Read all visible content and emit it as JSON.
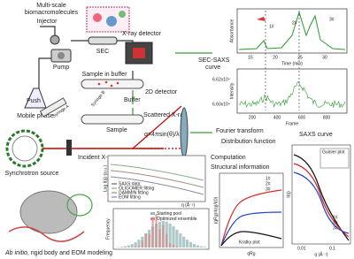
{
  "labels": {
    "molecules": [
      "Multi-scale",
      "biomacromolecules"
    ],
    "injector": "Injector",
    "xray_detector": "X-ray detector",
    "pump": "Pump",
    "sec": "SEC",
    "mobile_phase": "Mobile phase",
    "sample_in_buffer": "Sample in buffer",
    "buffer": "Buffer",
    "push": "Push",
    "syringe_a": "Syringe A",
    "syringe_b": "Syringe B",
    "sample": "Sample",
    "detector_2d": "2D detector",
    "sec_saxs_curve": [
      "SEC-SAXS",
      "curve"
    ],
    "synchrotron": "Synchrotron source",
    "incident": "Incident X-ray",
    "scattered": "Scattered X-ray",
    "q_formula": "q=4πsin(θ)/λ",
    "fourier": "Fourier transform",
    "distribution": "Distribution function",
    "saxs_curve": "SAXS curve",
    "computation": "Computation",
    "structural": "Structural information",
    "modeling": [
      "Ab initio",
      ", rigid body and EOM modeling"
    ]
  },
  "chromatogram": {
    "y_label_top": "Absorbance",
    "x_label_top": "Time (min)",
    "x_ticks_top": [
      "15",
      "20",
      "25",
      "30"
    ],
    "y_label_bottom": "Intensity",
    "x_label_bottom": "Frame",
    "x_ticks_bottom": [
      "200",
      "400",
      "600",
      "800"
    ],
    "y_ticks_bottom": [
      "6.62x10⁴",
      "6.60x10⁴"
    ],
    "peaks": [
      "1#",
      "2#",
      "3#"
    ]
  },
  "fit_panel": {
    "legend": [
      "SAXS data",
      "OLIGOMER fitting",
      "DAMMIN fitting",
      "EOM fitting"
    ],
    "y_label": "Log I(q) (a.u.)",
    "x_label": "q (Å⁻¹)"
  },
  "histogram": {
    "y_label": "Frequency",
    "legend": [
      "Starting pool",
      "Optimized ensemble"
    ]
  },
  "kratky": {
    "title": "Kratky plot",
    "y_label": "(qRg)²I(q)/I(0)",
    "x_label": "qRg",
    "series": [
      "1#",
      "2#",
      "3#"
    ]
  },
  "saxs": {
    "y_label": "I(q)",
    "x_label": "q (Å⁻¹)",
    "x_ticks": [
      "0.01",
      "0.1"
    ],
    "inset": "Guinier plot",
    "series": [
      "1#",
      "2#",
      "3#"
    ]
  }
}
